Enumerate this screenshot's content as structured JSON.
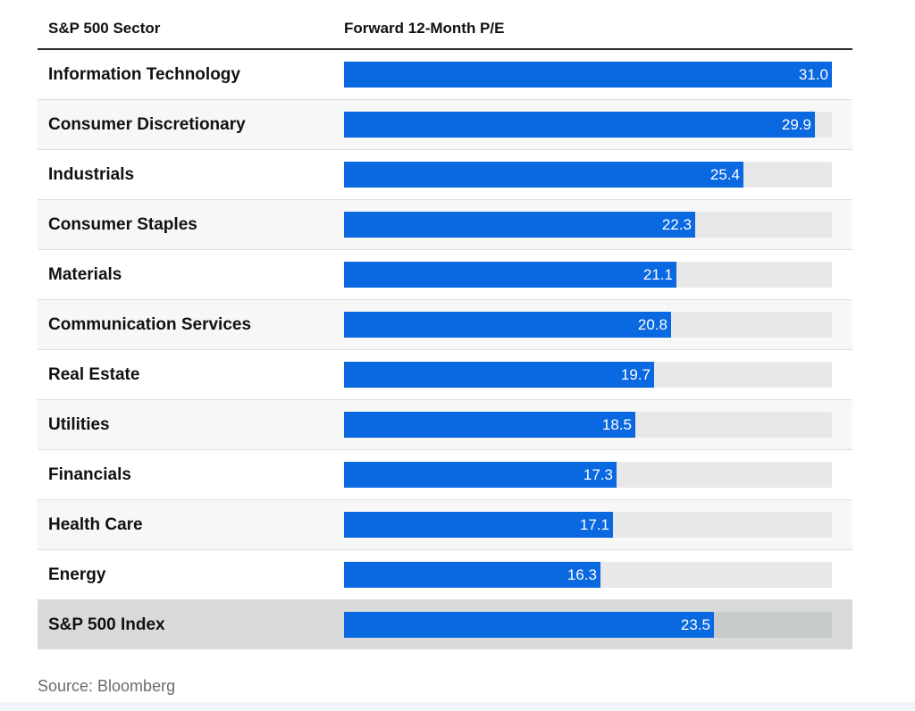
{
  "chart_data": {
    "type": "bar",
    "orientation": "horizontal",
    "column_headers": {
      "sector": "S&P 500 Sector",
      "value": "Forward 12-Month P/E"
    },
    "categories": [
      "Information Technology",
      "Consumer Discretionary",
      "Industrials",
      "Consumer Staples",
      "Materials",
      "Communication Services",
      "Real Estate",
      "Utilities",
      "Financials",
      "Health Care",
      "Energy",
      "S&P 500 Index"
    ],
    "values": [
      31.0,
      29.9,
      25.4,
      22.3,
      21.1,
      20.8,
      19.7,
      18.5,
      17.3,
      17.1,
      16.3,
      23.5
    ],
    "value_labels": [
      "31.0",
      "29.9",
      "25.4",
      "22.3",
      "21.1",
      "20.8",
      "19.7",
      "18.5",
      "17.3",
      "17.1",
      "16.3",
      "23.5"
    ],
    "xlim": [
      0,
      31.0
    ],
    "highlighted_category": "S&P 500 Index",
    "colors": {
      "bar": "#0a68e0",
      "track": "#e8e8e8",
      "index_row_bg": "#d9dbdb",
      "label_text": "#ffffff"
    },
    "grid": false,
    "legend": "none",
    "source": "Source: Bloomberg"
  }
}
